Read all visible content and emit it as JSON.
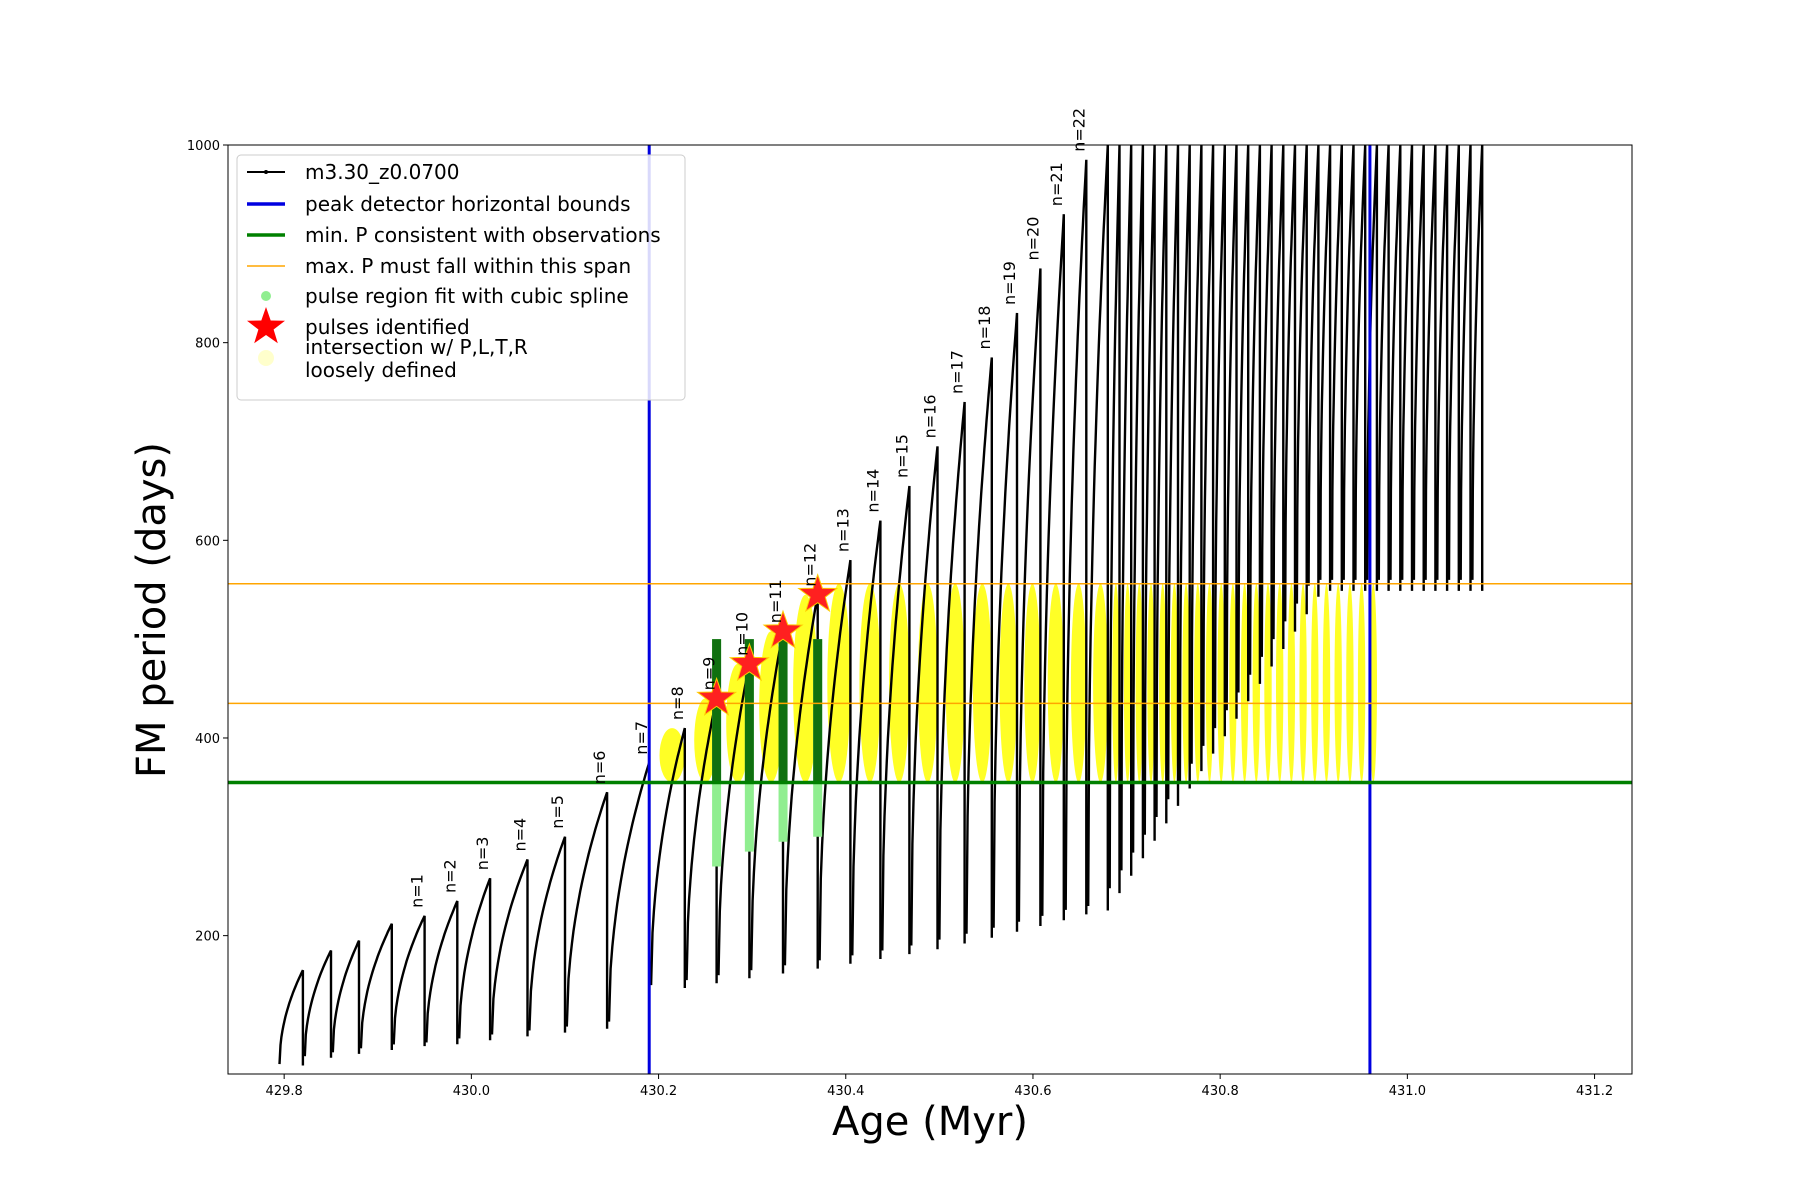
{
  "chart_data": {
    "type": "line",
    "title": "",
    "xlabel": "Age (Myr)",
    "ylabel": "FM period (days)",
    "xlim": [
      429.74,
      431.24
    ],
    "ylim": [
      60,
      1000
    ],
    "xticks": [
      "429.8",
      "430.0",
      "430.2",
      "430.4",
      "430.6",
      "430.8",
      "431.0",
      "431.2"
    ],
    "xtick_values": [
      429.8,
      430.0,
      430.2,
      430.4,
      430.6,
      430.8,
      431.0,
      431.2
    ],
    "yticks": [
      "200",
      "400",
      "600",
      "800",
      "1000"
    ],
    "ytick_values": [
      200,
      400,
      600,
      800,
      1000
    ],
    "grid": false,
    "legend_position": "top-left",
    "legend": [
      {
        "label": "m3.30_z0.0700",
        "style": "black-line-dots",
        "color": "#000000"
      },
      {
        "label": "peak detector horizontal bounds",
        "style": "line",
        "color": "#0000e0"
      },
      {
        "label": "min. P consistent with observations",
        "style": "line",
        "color": "#008000"
      },
      {
        "label": "max. P must fall within this span",
        "style": "thin-line",
        "color": "#ffa500"
      },
      {
        "label": "pulse region fit with cubic spline",
        "style": "dot",
        "color": "#90ee90"
      },
      {
        "label": "pulses identified",
        "style": "star",
        "color": "#ff0000"
      },
      {
        "label": "intersection w/ P,L,T,R",
        "label2": "loosely defined",
        "style": "dot",
        "color": "#ffffcc"
      }
    ],
    "reference_lines": {
      "vertical_blue": [
        430.19,
        430.96
      ],
      "horizontal_green": 355,
      "horizontal_orange": [
        435,
        556
      ]
    },
    "pulses": [
      {
        "label": "n=1",
        "age": 429.95,
        "peak": 220,
        "min": 90
      },
      {
        "label": "n=2",
        "age": 429.985,
        "peak": 235,
        "min": 92
      },
      {
        "label": "n=3",
        "age": 430.02,
        "peak": 258,
        "min": 96
      },
      {
        "label": "n=4",
        "age": 430.06,
        "peak": 277,
        "min": 100
      },
      {
        "label": "n=5",
        "age": 430.1,
        "peak": 300,
        "min": 104
      },
      {
        "label": "n=6",
        "age": 430.145,
        "peak": 345,
        "min": 108
      },
      {
        "label": "n=7",
        "age": 430.19,
        "peak": 375,
        "min": 113
      },
      {
        "label": "n=8",
        "age": 430.228,
        "peak": 410,
        "min": 150
      },
      {
        "label": "n=9",
        "age": 430.262,
        "peak": 440,
        "min": 155
      },
      {
        "label": "n=10",
        "age": 430.297,
        "peak": 475,
        "min": 160
      },
      {
        "label": "n=11",
        "age": 430.333,
        "peak": 508,
        "min": 165
      },
      {
        "label": "n=12",
        "age": 430.37,
        "peak": 545,
        "min": 170
      },
      {
        "label": "n=13",
        "age": 430.405,
        "peak": 580,
        "min": 175
      },
      {
        "label": "n=14",
        "age": 430.437,
        "peak": 620,
        "min": 180
      },
      {
        "label": "n=15",
        "age": 430.468,
        "peak": 655,
        "min": 185
      },
      {
        "label": "n=16",
        "age": 430.498,
        "peak": 695,
        "min": 190
      },
      {
        "label": "n=17",
        "age": 430.527,
        "peak": 740,
        "min": 196
      },
      {
        "label": "n=18",
        "age": 430.556,
        "peak": 785,
        "min": 202
      },
      {
        "label": "n=19",
        "age": 430.583,
        "peak": 830,
        "min": 208
      },
      {
        "label": "n=20",
        "age": 430.608,
        "peak": 875,
        "min": 214
      },
      {
        "label": "n=21",
        "age": 430.633,
        "peak": 930,
        "min": 220
      },
      {
        "label": "n=22",
        "age": 430.657,
        "peak": 985,
        "min": 226
      }
    ],
    "pre_pulse_bumps": [
      {
        "age": 429.82,
        "peak": 165,
        "min": 70
      },
      {
        "age": 429.85,
        "peak": 185,
        "min": 78
      },
      {
        "age": 429.88,
        "peak": 195,
        "min": 82
      },
      {
        "age": 429.915,
        "peak": 212,
        "min": 86
      }
    ],
    "late_pulse_ages_start": 430.68,
    "late_pulse_ages_end": 431.09,
    "late_pulse_spacing": 0.0125,
    "identified_pulses": [
      {
        "age": 430.262,
        "period": 440
      },
      {
        "age": 430.297,
        "period": 475
      },
      {
        "age": 430.333,
        "period": 508
      },
      {
        "age": 430.37,
        "period": 545
      }
    ],
    "spline_regions": [
      {
        "age": 430.262,
        "low": 270,
        "high": 500
      },
      {
        "age": 430.297,
        "low": 285,
        "high": 500
      },
      {
        "age": 430.333,
        "low": 295,
        "high": 500
      },
      {
        "age": 430.37,
        "low": 300,
        "high": 500
      }
    ]
  }
}
